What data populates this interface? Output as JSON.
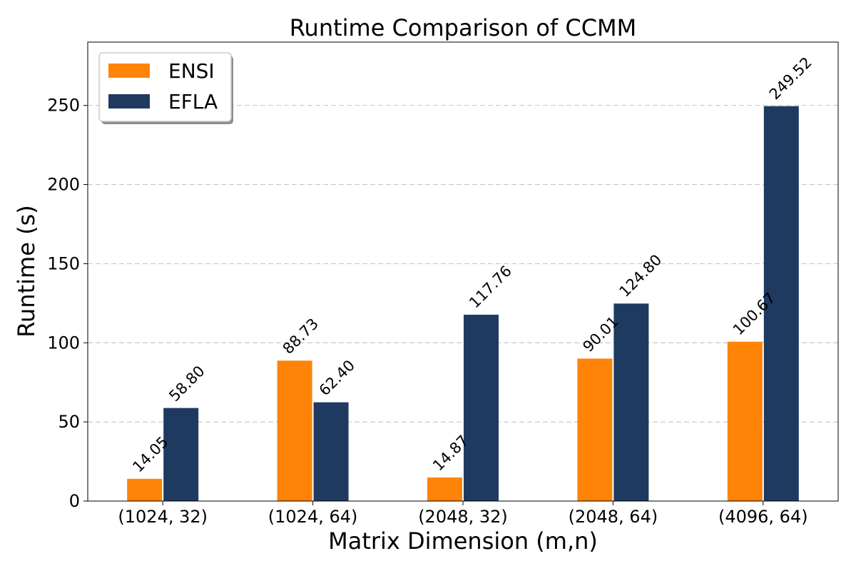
{
  "chart_data": {
    "type": "bar",
    "title": "Runtime Comparison of CCMM",
    "xlabel": "Matrix Dimension (m,n)",
    "ylabel": "Runtime (s)",
    "categories": [
      "(1024, 32)",
      "(1024, 64)",
      "(2048, 32)",
      "(2048, 64)",
      "(4096, 64)"
    ],
    "series": [
      {
        "name": "ENSI",
        "color": "#ff8307",
        "values": [
          14.05,
          88.73,
          14.87,
          90.01,
          100.67
        ],
        "labels": [
          "14.05",
          "88.73",
          "14.87",
          "90.01",
          "100.67"
        ]
      },
      {
        "name": "EFLA",
        "color": "#1f3a60",
        "values": [
          58.8,
          62.4,
          117.76,
          124.8,
          249.52
        ],
        "labels": [
          "58.80",
          "62.40",
          "117.76",
          "124.80",
          "249.52"
        ]
      }
    ],
    "ylim": [
      0,
      290
    ],
    "yticks": [
      0,
      50,
      100,
      150,
      200,
      250
    ],
    "ytick_labels": [
      "0",
      "50",
      "100",
      "150",
      "200",
      "250"
    ],
    "grid": "y-dashed",
    "legend_position": "top-left"
  }
}
